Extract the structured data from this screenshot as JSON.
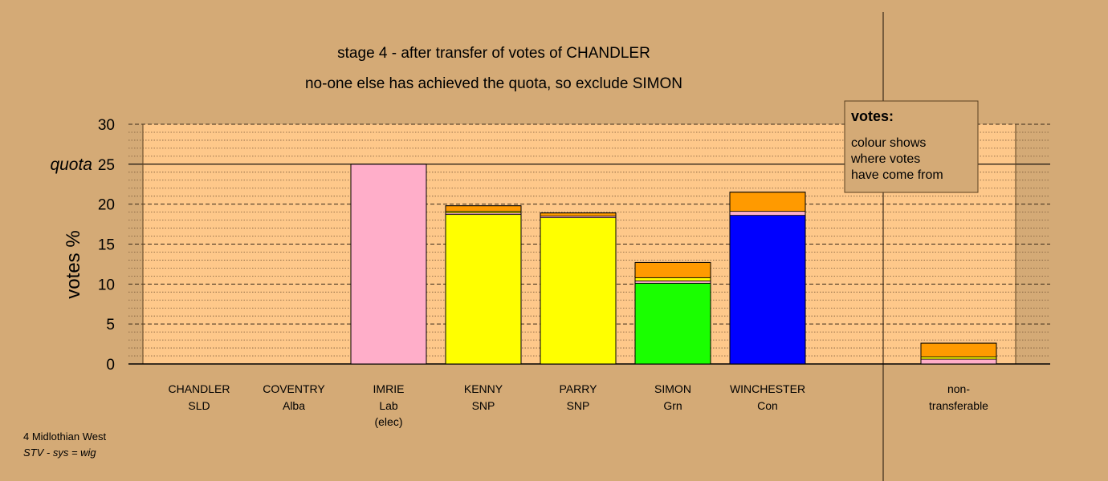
{
  "chart_data": {
    "type": "bar",
    "stacked": true,
    "title": "stage 4 - after transfer of votes of CHANDLER",
    "subtitle": "no-one else has achieved the quota, so exclude SIMON",
    "ylabel": "votes %",
    "ylim": [
      0,
      30
    ],
    "yticks": [
      "0",
      "5",
      "10",
      "15",
      "20",
      "25",
      "30"
    ],
    "quota": {
      "value": 25,
      "label": "quota"
    },
    "grid": true,
    "categories": [
      {
        "name": "CHANDLER",
        "party": "SLD",
        "note": ""
      },
      {
        "name": "COVENTRY",
        "party": "Alba",
        "note": ""
      },
      {
        "name": "IMRIE",
        "party": "Lab",
        "note": "(elec)"
      },
      {
        "name": "KENNY",
        "party": "SNP",
        "note": ""
      },
      {
        "name": "PARRY",
        "party": "SNP",
        "note": ""
      },
      {
        "name": "SIMON",
        "party": "Grn",
        "note": ""
      },
      {
        "name": "WINCHESTER",
        "party": "Con",
        "note": ""
      }
    ],
    "bars": [
      {
        "segments": []
      },
      {
        "segments": []
      },
      {
        "segments": [
          {
            "value": 25.0,
            "color": "#ffaec9"
          }
        ]
      },
      {
        "segments": [
          {
            "value": 18.7,
            "color": "#ffff00"
          },
          {
            "value": 0.2,
            "color": "#ffaec9"
          },
          {
            "value": 0.2,
            "color": "#ffff00"
          },
          {
            "value": 0.7,
            "color": "#ff9a00"
          }
        ]
      },
      {
        "segments": [
          {
            "value": 18.3,
            "color": "#ffff00"
          },
          {
            "value": 0.2,
            "color": "#ffaec9"
          },
          {
            "value": 0.4,
            "color": "#ff9a00"
          }
        ]
      },
      {
        "segments": [
          {
            "value": 10.1,
            "color": "#1aff00"
          },
          {
            "value": 0.3,
            "color": "#ffaec9"
          },
          {
            "value": 0.4,
            "color": "#ffff00"
          },
          {
            "value": 1.9,
            "color": "#ff9a00"
          }
        ]
      },
      {
        "segments": [
          {
            "value": 18.6,
            "color": "#0000ff"
          },
          {
            "value": 0.5,
            "color": "#ffaec9"
          },
          {
            "value": 2.4,
            "color": "#ff9a00"
          }
        ]
      }
    ],
    "nontransferable": {
      "label_line1": "non-",
      "label_line2": "transferable",
      "segments": [
        {
          "value": 0.6,
          "color": "#ffaec9"
        },
        {
          "value": 0.3,
          "color": "#ffff00"
        },
        {
          "value": 1.7,
          "color": "#ff9a00"
        }
      ]
    },
    "legend": {
      "title": "votes:",
      "lines": [
        "colour shows",
        "where votes",
        "have come from"
      ]
    }
  },
  "footer": {
    "constituency": "4 Midlothian West",
    "system": "STV - sys = wig"
  },
  "colors": {
    "background": "#d4aa76",
    "plot_area": "#fec88a"
  }
}
